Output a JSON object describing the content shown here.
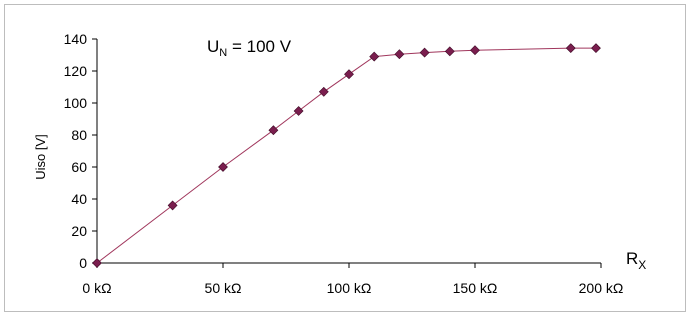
{
  "chart_data": {
    "type": "line",
    "title": "",
    "annotation": {
      "main": "U",
      "sub": "N",
      "rest": " = 100 V"
    },
    "xlabel": {
      "main": "R",
      "sub": "X"
    },
    "ylabel": "Uiso [V]",
    "xlim": [
      0,
      200
    ],
    "ylim": [
      0,
      140
    ],
    "x_ticks": [
      0,
      50,
      100,
      150,
      200
    ],
    "x_tick_labels": [
      "0 kΩ",
      "50 kΩ",
      "100 kΩ",
      "150 kΩ",
      "200 kΩ"
    ],
    "y_ticks": [
      0,
      20,
      40,
      60,
      80,
      100,
      120,
      140
    ],
    "y_tick_labels": [
      "0",
      "20",
      "40",
      "60",
      "80",
      "100",
      "120",
      "140"
    ],
    "grid": false,
    "line_color": "#a0365c",
    "marker_color": "#7a1e4e",
    "series": [
      {
        "x": [
          0,
          30,
          50,
          70,
          80,
          90,
          100,
          110,
          120,
          130,
          140,
          150,
          188,
          198
        ],
        "y": [
          0,
          36,
          60,
          83,
          95,
          107,
          118,
          129,
          130.5,
          131.5,
          132.3,
          133,
          134.3,
          134.3
        ]
      }
    ]
  }
}
